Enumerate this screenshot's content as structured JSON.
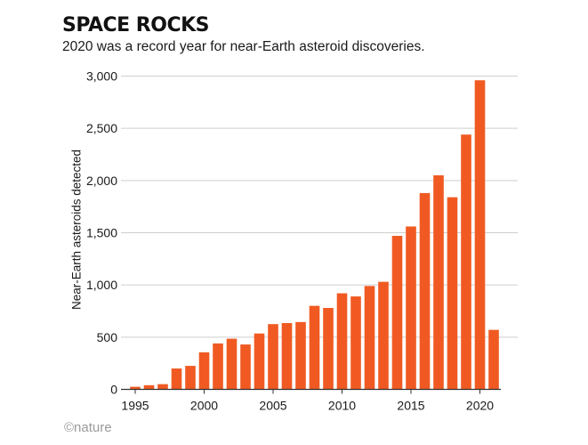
{
  "header": {
    "title": "SPACE ROCKS",
    "subtitle": "2020 was a record year for near-Earth asteroid discoveries."
  },
  "footer": {
    "credit": "©nature"
  },
  "colors": {
    "bar": "#f05a22",
    "grid": "#cfcfcf",
    "axis": "#333333"
  },
  "chart_data": {
    "type": "bar",
    "title": "SPACE ROCKS",
    "subtitle": "2020 was a record year for near-Earth asteroid discoveries.",
    "xlabel": "",
    "ylabel": "Near-Earth asteroids detected",
    "categories": [
      1995,
      1996,
      1997,
      1998,
      1999,
      2000,
      2001,
      2002,
      2003,
      2004,
      2005,
      2006,
      2007,
      2008,
      2009,
      2010,
      2011,
      2012,
      2013,
      2014,
      2015,
      2016,
      2017,
      2018,
      2019,
      2020,
      2021
    ],
    "values": [
      25,
      40,
      50,
      200,
      225,
      355,
      440,
      485,
      430,
      535,
      625,
      635,
      645,
      800,
      780,
      920,
      890,
      990,
      1030,
      1470,
      1560,
      1880,
      2050,
      1840,
      2440,
      2960,
      570
    ],
    "x_tick_labels": [
      "1995",
      "2000",
      "2005",
      "2010",
      "2015",
      "2020"
    ],
    "y_tick_labels": [
      "0",
      "500",
      "1,000",
      "1,500",
      "2,000",
      "2,500",
      "3,000"
    ],
    "y_ticks": [
      0,
      500,
      1000,
      1500,
      2000,
      2500,
      3000
    ],
    "ylim": [
      0,
      3000
    ],
    "grid": true,
    "legend": "none"
  }
}
